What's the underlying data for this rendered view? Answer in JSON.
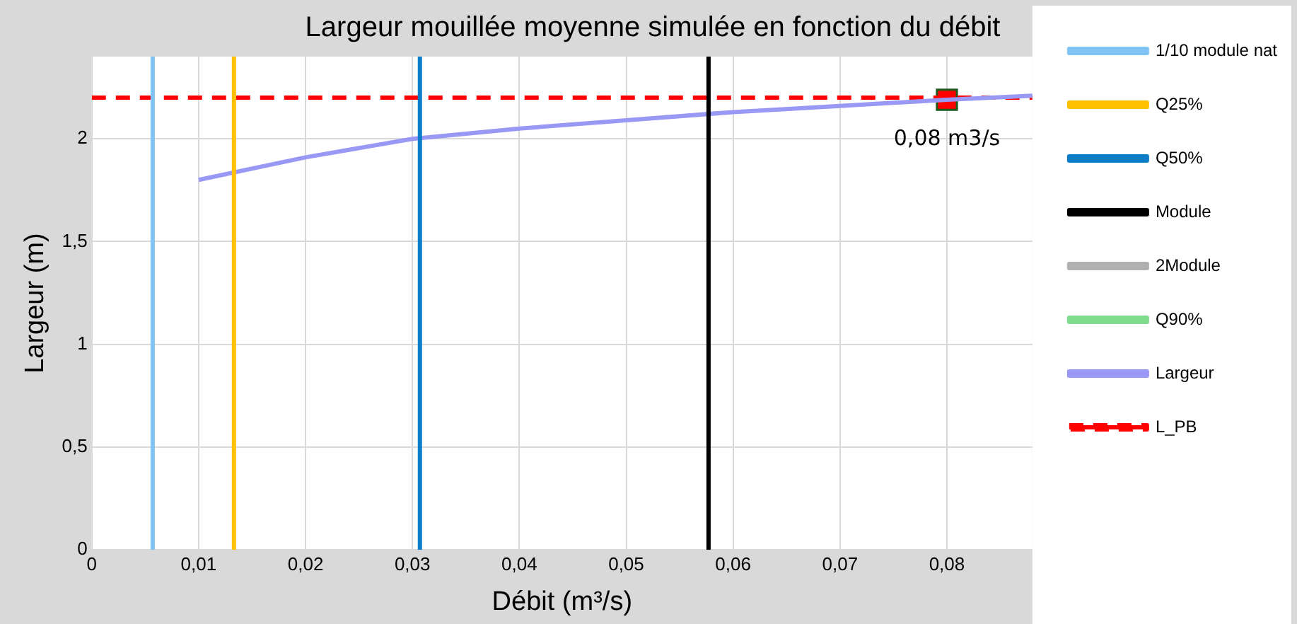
{
  "chart_data": {
    "type": "line",
    "title": "Largeur mouillée moyenne simulée en fonction du débit",
    "xlabel": "Débit (m³/s)",
    "ylabel": "Largeur (m)",
    "xlim": [
      0,
      0.088
    ],
    "xticks": [
      0,
      {
        "value": 0.01,
        "label": "0,01"
      },
      {
        "value": 0.02,
        "label": "0,02"
      },
      {
        "value": 0.03,
        "label": "0,03"
      },
      {
        "value": 0.04,
        "label": "0,04"
      },
      {
        "value": 0.05,
        "label": "0,05"
      },
      {
        "value": 0.06,
        "label": "0,06"
      },
      {
        "value": 0.07,
        "label": "0,07"
      },
      {
        "value": 0.08,
        "label": "0,08"
      }
    ],
    "ylim": [
      0,
      2.4
    ],
    "yticks": [
      0,
      {
        "value": 0.5,
        "label": "0,5"
      },
      1,
      {
        "value": 1.5,
        "label": "1,5"
      },
      2
    ],
    "grid": true,
    "legend": "right",
    "series": [
      {
        "name": "1/10 module nat",
        "color": "#7fc4f5",
        "x": [
          0.0057,
          0.0057
        ],
        "values": [
          0,
          2.4
        ]
      },
      {
        "name": "Q25%",
        "color": "#ffc000",
        "x": [
          0.0133,
          0.0133
        ],
        "values": [
          0,
          2.4
        ]
      },
      {
        "name": "Q50%",
        "color": "#0a7dc9",
        "x": [
          0.0307,
          0.0307
        ],
        "values": [
          0,
          2.4
        ]
      },
      {
        "name": "Module",
        "color": "#000000",
        "x": [
          0.0577,
          0.0577
        ],
        "values": [
          0,
          2.4
        ]
      },
      {
        "name": "2Module",
        "color": "#b0b0b0"
      },
      {
        "name": "Q90%",
        "color": "#7fdc8c"
      },
      {
        "name": "Largeur",
        "color": "#9999f5",
        "x": [
          0.01,
          0.02,
          0.03,
          0.04,
          0.05,
          0.06,
          0.07,
          0.08,
          0.088
        ],
        "values": [
          1.8,
          1.91,
          2.0,
          2.05,
          2.09,
          2.13,
          2.16,
          2.19,
          2.21
        ]
      },
      {
        "name": "L_PB",
        "color": "#ff0000",
        "line_style": "dashed",
        "x": [
          0,
          0.088
        ],
        "values": [
          2.2,
          2.2
        ]
      },
      {
        "type": "scatter",
        "marker": "square",
        "color": "#ff0000",
        "x": [
          0.08
        ],
        "values": [
          2.19
        ]
      }
    ],
    "annotations": [
      {
        "text": "0,08 m3/s",
        "x": 0.08,
        "y": 2.19
      }
    ]
  }
}
